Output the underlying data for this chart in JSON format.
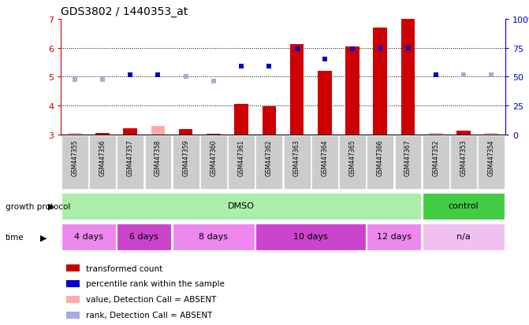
{
  "title": "GDS3802 / 1440353_at",
  "samples": [
    "GSM447355",
    "GSM447356",
    "GSM447357",
    "GSM447358",
    "GSM447359",
    "GSM447360",
    "GSM447361",
    "GSM447362",
    "GSM447363",
    "GSM447364",
    "GSM447365",
    "GSM447366",
    "GSM447367",
    "GSM447352",
    "GSM447353",
    "GSM447354"
  ],
  "transformed_count": [
    3.05,
    3.05,
    3.22,
    3.3,
    3.18,
    3.02,
    4.05,
    3.97,
    6.12,
    5.2,
    6.05,
    6.7,
    7.0,
    3.05,
    3.12,
    3.05
  ],
  "detection_absent_count": [
    true,
    false,
    false,
    true,
    false,
    false,
    false,
    false,
    false,
    false,
    false,
    false,
    false,
    true,
    false,
    true
  ],
  "percentile_rank": [
    4.9,
    4.9,
    5.05,
    5.05,
    5.0,
    4.85,
    5.35,
    5.35,
    5.95,
    5.6,
    5.95,
    6.0,
    6.0,
    5.05,
    5.05,
    5.05
  ],
  "detection_absent_rank": [
    true,
    true,
    false,
    false,
    true,
    true,
    false,
    false,
    false,
    false,
    false,
    false,
    false,
    false,
    true,
    true
  ],
  "ylim_left": [
    3,
    7
  ],
  "ylim_right": [
    0,
    100
  ],
  "yticks_left": [
    3,
    4,
    5,
    6,
    7
  ],
  "yticks_right": [
    0,
    25,
    50,
    75,
    100
  ],
  "bar_color": "#cc0000",
  "bar_absent_color": "#ffaaaa",
  "rank_color": "#0000cc",
  "rank_absent_color": "#aaaadd",
  "groups": [
    {
      "label": "DMSO",
      "color": "#aaeeaa",
      "start": 0,
      "end": 13
    },
    {
      "label": "control",
      "color": "#44cc44",
      "start": 13,
      "end": 16
    }
  ],
  "time_groups": [
    {
      "label": "4 days",
      "color": "#ee88ee",
      "start": 0,
      "end": 2
    },
    {
      "label": "6 days",
      "color": "#cc44cc",
      "start": 2,
      "end": 4
    },
    {
      "label": "8 days",
      "color": "#ee88ee",
      "start": 4,
      "end": 7
    },
    {
      "label": "10 days",
      "color": "#cc44cc",
      "start": 7,
      "end": 11
    },
    {
      "label": "12 days",
      "color": "#ee88ee",
      "start": 11,
      "end": 13
    },
    {
      "label": "n/a",
      "color": "#f0c0f0",
      "start": 13,
      "end": 16
    }
  ],
  "growth_protocol_label": "growth protocol",
  "time_label": "time",
  "legend_labels": [
    "transformed count",
    "percentile rank within the sample",
    "value, Detection Call = ABSENT",
    "rank, Detection Call = ABSENT"
  ],
  "legend_colors": [
    "#cc0000",
    "#0000cc",
    "#ffaaaa",
    "#aaaadd"
  ]
}
